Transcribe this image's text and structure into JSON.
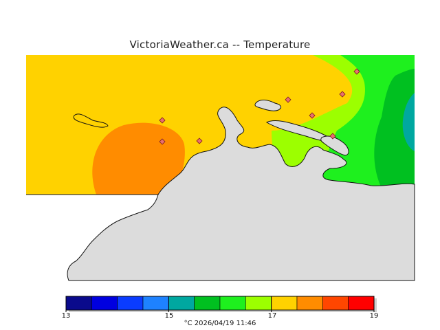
{
  "title": "VictoriaWeather.ca -- Temperature",
  "legend": {
    "unit": "°C",
    "timestamp": "2026/04/19 11:46",
    "caption": "°C  2026/04/19 11:46",
    "min": 13,
    "max": 19,
    "tick_labels": [
      "13",
      "15",
      "17",
      "19"
    ],
    "bands": [
      {
        "from": 13.0,
        "to": 13.5,
        "color": "#0a0a8c"
      },
      {
        "from": 13.5,
        "to": 14.0,
        "color": "#0000e0"
      },
      {
        "from": 14.0,
        "to": 14.5,
        "color": "#0a3cff"
      },
      {
        "from": 14.5,
        "to": 15.0,
        "color": "#1e82ff"
      },
      {
        "from": 15.0,
        "to": 15.5,
        "color": "#00a8a0"
      },
      {
        "from": 15.5,
        "to": 16.0,
        "color": "#00c020"
      },
      {
        "from": 16.0,
        "to": 16.5,
        "color": "#1ef01e"
      },
      {
        "from": 16.5,
        "to": 17.0,
        "color": "#9cff00"
      },
      {
        "from": 17.0,
        "to": 17.5,
        "color": "#ffd200"
      },
      {
        "from": 17.5,
        "to": 18.0,
        "color": "#ff8c00"
      },
      {
        "from": 18.0,
        "to": 18.5,
        "color": "#ff4600"
      },
      {
        "from": 18.5,
        "to": 19.0,
        "color": "#ff0000"
      }
    ]
  },
  "colors": {
    "land_mask": "#dcdcdc",
    "zone_17_17_5": "#ffd200",
    "zone_17_5_18": "#ff8c00",
    "zone_16_5_17": "#9cff00",
    "zone_16_16_5": "#1ef01e",
    "zone_15_5_16": "#00c020",
    "zone_15_15_5": "#00a8a0",
    "station_marker": "#e87070"
  },
  "stations_count": 8
}
